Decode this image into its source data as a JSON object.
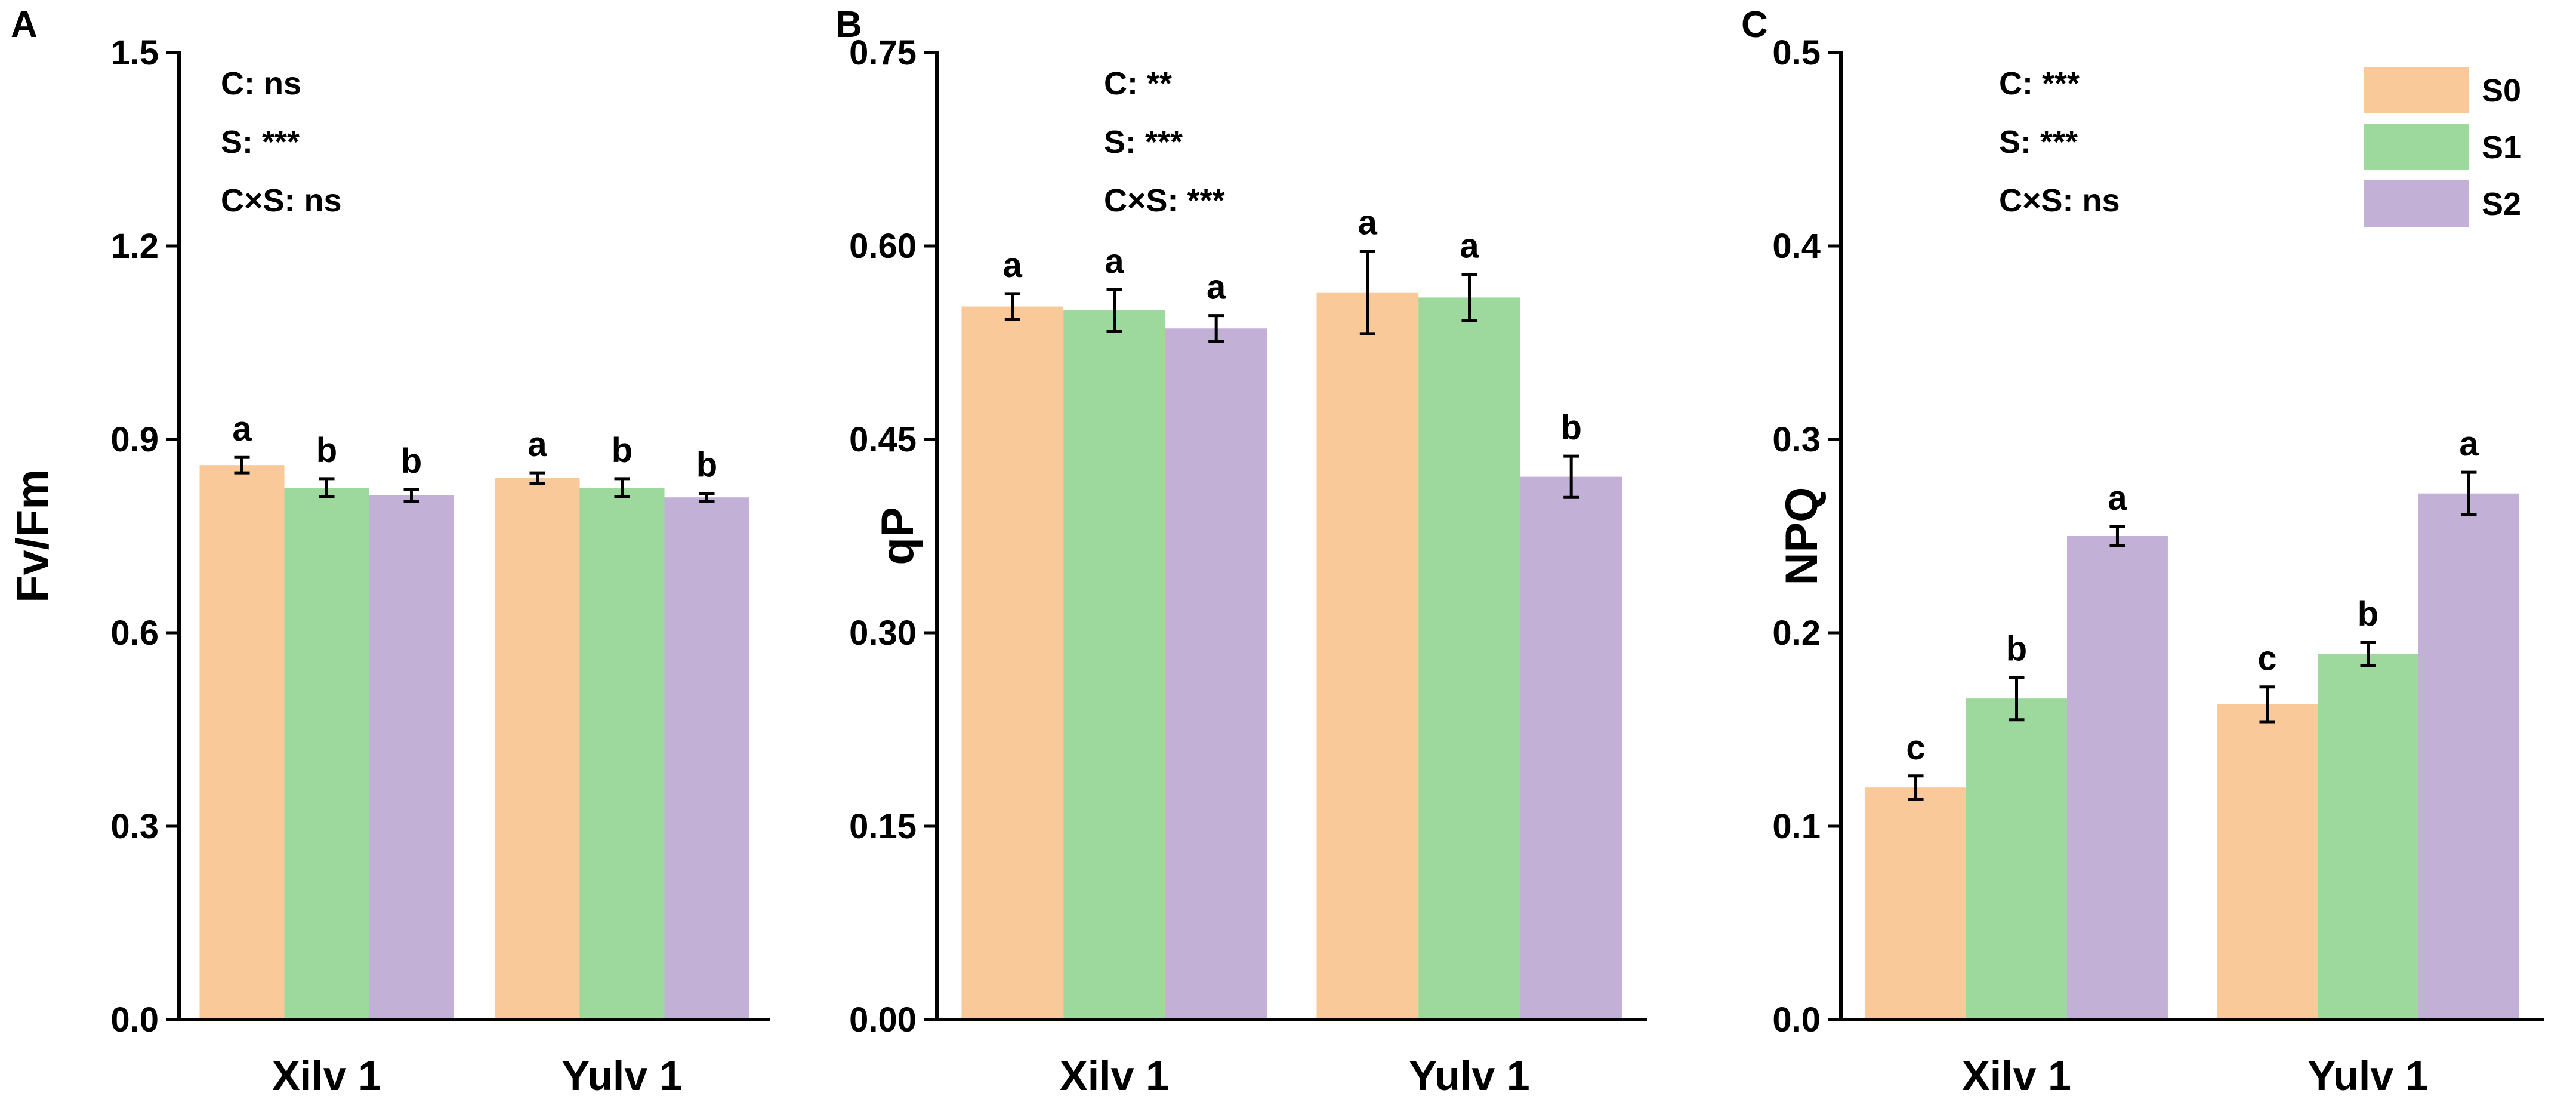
{
  "chart_data": [
    {
      "type": "bar",
      "panel_label": "A",
      "ylabel": "Fv/Fm",
      "ylim": [
        0,
        1.5
      ],
      "yticks": [
        "0.0",
        "0.3",
        "0.6",
        "0.9",
        "1.2",
        "1.5"
      ],
      "categories": [
        "Xilv 1",
        "Yulv 1"
      ],
      "series": [
        {
          "name": "S0",
          "values": [
            0.86,
            0.84
          ],
          "errors": [
            0.012,
            0.008
          ],
          "letters": [
            "a",
            "a"
          ]
        },
        {
          "name": "S1",
          "values": [
            0.825,
            0.825
          ],
          "errors": [
            0.014,
            0.014
          ],
          "letters": [
            "b",
            "b"
          ]
        },
        {
          "name": "S2",
          "values": [
            0.813,
            0.81
          ],
          "errors": [
            0.009,
            0.006
          ],
          "letters": [
            "b",
            "b"
          ]
        }
      ],
      "annotations": [
        "C: ns",
        "S: ***",
        "C×S: ns"
      ]
    },
    {
      "type": "bar",
      "panel_label": "B",
      "ylabel": "qP",
      "ylim": [
        0,
        0.75
      ],
      "yticks": [
        "0.00",
        "0.15",
        "0.30",
        "0.45",
        "0.60",
        "0.75"
      ],
      "categories": [
        "Xilv 1",
        "Yulv 1"
      ],
      "series": [
        {
          "name": "S0",
          "values": [
            0.553,
            0.564
          ],
          "errors": [
            0.01,
            0.032
          ],
          "letters": [
            "a",
            "a"
          ]
        },
        {
          "name": "S1",
          "values": [
            0.55,
            0.56
          ],
          "errors": [
            0.016,
            0.018
          ],
          "letters": [
            "a",
            "a"
          ]
        },
        {
          "name": "S2",
          "values": [
            0.536,
            0.421
          ],
          "errors": [
            0.01,
            0.016
          ],
          "letters": [
            "a",
            "b"
          ]
        }
      ],
      "annotations": [
        "C: **",
        "S: ***",
        "C×S: ***"
      ]
    },
    {
      "type": "bar",
      "panel_label": "C",
      "ylabel": "NPQ",
      "ylim": [
        0,
        0.5
      ],
      "yticks": [
        "0.0",
        "0.1",
        "0.2",
        "0.3",
        "0.4",
        "0.5"
      ],
      "categories": [
        "Xilv 1",
        "Yulv 1"
      ],
      "series": [
        {
          "name": "S0",
          "values": [
            0.12,
            0.163
          ],
          "errors": [
            0.006,
            0.009
          ],
          "letters": [
            "c",
            "c"
          ]
        },
        {
          "name": "S1",
          "values": [
            0.166,
            0.189
          ],
          "errors": [
            0.011,
            0.006
          ],
          "letters": [
            "b",
            "b"
          ]
        },
        {
          "name": "S2",
          "values": [
            0.25,
            0.272
          ],
          "errors": [
            0.005,
            0.011
          ],
          "letters": [
            "a",
            "a"
          ]
        }
      ],
      "annotations": [
        "C: ***",
        "S: ***",
        "C×S: ns"
      ],
      "legend": {
        "position": "top-right",
        "entries": [
          "S0",
          "S1",
          "S2"
        ]
      }
    }
  ],
  "colors": {
    "S0": "#f9c999",
    "S1": "#9dd89c",
    "S2": "#c3b0d7",
    "axis": "#000000"
  }
}
